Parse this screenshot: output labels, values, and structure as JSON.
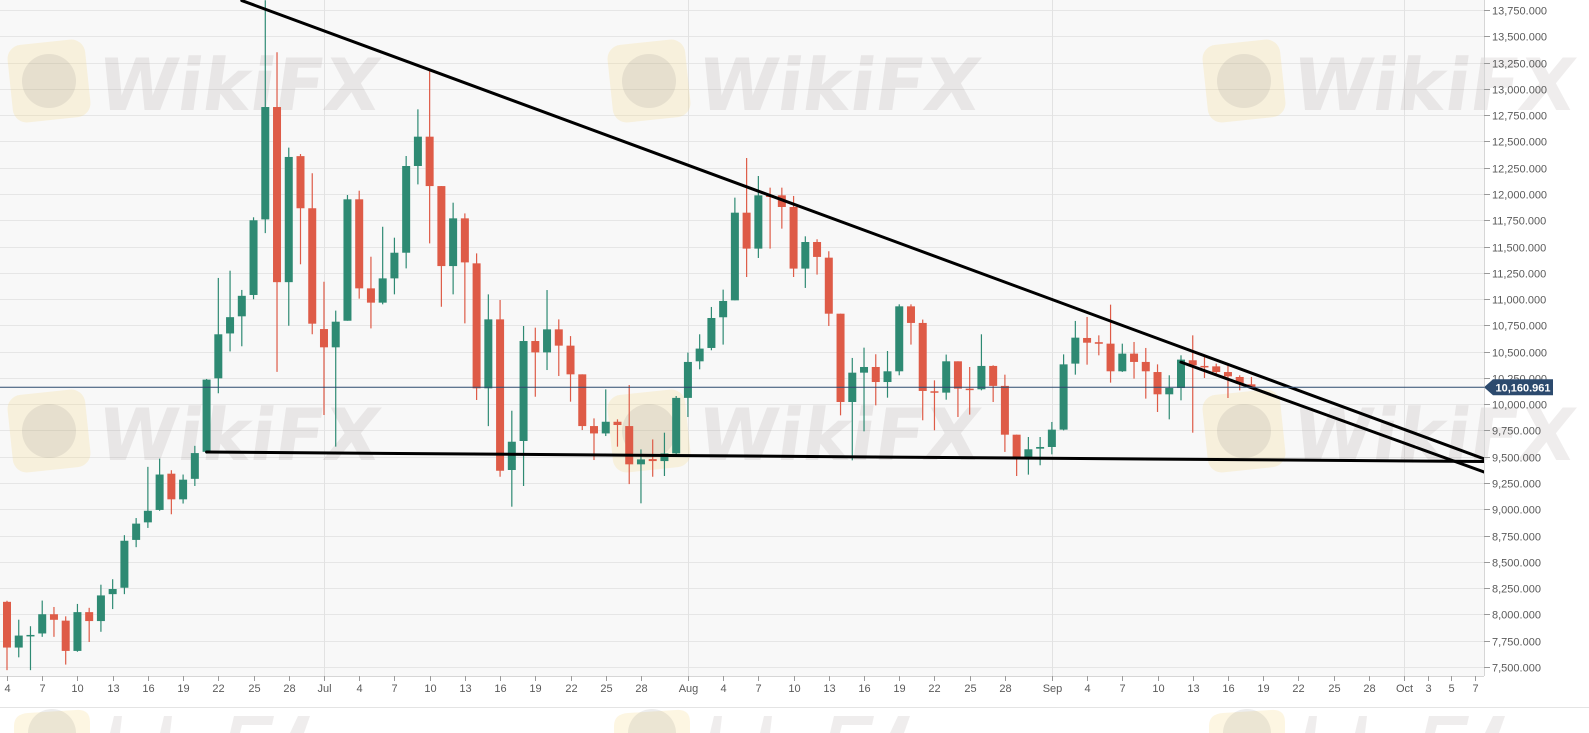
{
  "chart_data": {
    "type": "candlestick",
    "title": "",
    "xlabel": "",
    "ylabel": "",
    "ylim": [
      7500,
      13750
    ],
    "grid": true,
    "colors": {
      "up": "#2e8a73",
      "down": "#de5b47",
      "background": "#f8f8f8",
      "grid": "#e6e6e6",
      "price_line": "#2c4a6e",
      "trend_line": "#000000"
    },
    "current_price": {
      "value": 10160.961,
      "label": "10,160.961"
    },
    "y_ticks": [
      {
        "value": 13750,
        "label": "13,750.000"
      },
      {
        "value": 13500,
        "label": "13,500.000"
      },
      {
        "value": 13250,
        "label": "13,250.000"
      },
      {
        "value": 13000,
        "label": "13,000.000"
      },
      {
        "value": 12750,
        "label": "12,750.000"
      },
      {
        "value": 12500,
        "label": "12,500.000"
      },
      {
        "value": 12250,
        "label": "12,250.000"
      },
      {
        "value": 12000,
        "label": "12,000.000"
      },
      {
        "value": 11750,
        "label": "11,750.000"
      },
      {
        "value": 11500,
        "label": "11,500.000"
      },
      {
        "value": 11250,
        "label": "11,250.000"
      },
      {
        "value": 11000,
        "label": "11,000.000"
      },
      {
        "value": 10750,
        "label": "10,750.000"
      },
      {
        "value": 10500,
        "label": "10,500.000"
      },
      {
        "value": 10250,
        "label": "10,250.000"
      },
      {
        "value": 10000,
        "label": "10,000.000"
      },
      {
        "value": 9750,
        "label": "9,750.000"
      },
      {
        "value": 9500,
        "label": "9,500.000"
      },
      {
        "value": 9250,
        "label": "9,250.000"
      },
      {
        "value": 9000,
        "label": "9,000.000"
      },
      {
        "value": 8750,
        "label": "8,750.000"
      },
      {
        "value": 8500,
        "label": "8,500.000"
      },
      {
        "value": 8250,
        "label": "8,250.000"
      },
      {
        "value": 8000,
        "label": "8,000.000"
      },
      {
        "value": 7750,
        "label": "7,750.000"
      },
      {
        "value": 7500,
        "label": "7,500.000"
      }
    ],
    "x_ticks": [
      {
        "date": "06-04",
        "label": "4"
      },
      {
        "date": "06-07",
        "label": "7"
      },
      {
        "date": "06-10",
        "label": "10"
      },
      {
        "date": "06-13",
        "label": "13"
      },
      {
        "date": "06-16",
        "label": "16"
      },
      {
        "date": "06-19",
        "label": "19"
      },
      {
        "date": "06-22",
        "label": "22"
      },
      {
        "date": "06-25",
        "label": "25"
      },
      {
        "date": "06-28",
        "label": "28"
      },
      {
        "date": "07-01",
        "label": "Jul",
        "month": true
      },
      {
        "date": "07-04",
        "label": "4"
      },
      {
        "date": "07-07",
        "label": "7"
      },
      {
        "date": "07-10",
        "label": "10"
      },
      {
        "date": "07-13",
        "label": "13"
      },
      {
        "date": "07-16",
        "label": "16"
      },
      {
        "date": "07-19",
        "label": "19"
      },
      {
        "date": "07-22",
        "label": "22"
      },
      {
        "date": "07-25",
        "label": "25"
      },
      {
        "date": "07-28",
        "label": "28"
      },
      {
        "date": "08-01",
        "label": "Aug",
        "month": true
      },
      {
        "date": "08-04",
        "label": "4"
      },
      {
        "date": "08-07",
        "label": "7"
      },
      {
        "date": "08-10",
        "label": "10"
      },
      {
        "date": "08-13",
        "label": "13"
      },
      {
        "date": "08-16",
        "label": "16"
      },
      {
        "date": "08-19",
        "label": "19"
      },
      {
        "date": "08-22",
        "label": "22"
      },
      {
        "date": "08-25",
        "label": "25"
      },
      {
        "date": "08-28",
        "label": "28"
      },
      {
        "date": "09-01",
        "label": "Sep",
        "month": true
      },
      {
        "date": "09-04",
        "label": "4"
      },
      {
        "date": "09-07",
        "label": "7"
      },
      {
        "date": "09-10",
        "label": "10"
      },
      {
        "date": "09-13",
        "label": "13"
      },
      {
        "date": "09-16",
        "label": "16"
      },
      {
        "date": "09-19",
        "label": "19"
      },
      {
        "date": "09-22",
        "label": "22"
      },
      {
        "date": "09-25",
        "label": "25"
      },
      {
        "date": "09-28",
        "label": "28"
      },
      {
        "date": "10-01",
        "label": "Oct",
        "month": true
      },
      {
        "date": "10-03",
        "label": "3"
      },
      {
        "date": "10-05",
        "label": "5"
      },
      {
        "date": "10-07",
        "label": "7"
      }
    ],
    "candle_fields": [
      "date",
      "open",
      "high",
      "low",
      "close"
    ],
    "candles": [
      [
        "06-04",
        8120,
        8130,
        7470,
        7685
      ],
      [
        "06-05",
        7685,
        7950,
        7592,
        7799
      ],
      [
        "06-06",
        7795,
        7888,
        7470,
        7805
      ],
      [
        "06-07",
        7819,
        8132,
        7787,
        8002
      ],
      [
        "06-08",
        8002,
        8071,
        7787,
        7949
      ],
      [
        "06-09",
        7941,
        7982,
        7523,
        7653
      ],
      [
        "06-10",
        7653,
        8100,
        7645,
        8022
      ],
      [
        "06-11",
        8022,
        8063,
        7738,
        7937
      ],
      [
        "06-12",
        7937,
        8283,
        7835,
        8181
      ],
      [
        "06-13",
        8193,
        8335,
        8051,
        8242
      ],
      [
        "06-14",
        8254,
        8754,
        8193,
        8701
      ],
      [
        "06-15",
        8709,
        8917,
        8640,
        8864
      ],
      [
        "06-16",
        8876,
        9404,
        8823,
        8986
      ],
      [
        "06-17",
        8994,
        9482,
        8986,
        9331
      ],
      [
        "06-18",
        9339,
        9372,
        8953,
        9095
      ],
      [
        "06-19",
        9095,
        9331,
        9055,
        9282
      ],
      [
        "06-20",
        9290,
        9604,
        9222,
        9535
      ],
      [
        "06-21",
        9547,
        10240,
        9530,
        10234
      ],
      [
        "06-22",
        10246,
        11201,
        10104,
        10665
      ],
      [
        "06-23",
        10673,
        11270,
        10502,
        10828
      ],
      [
        "06-24",
        10836,
        11087,
        10551,
        11031
      ],
      [
        "06-25",
        11039,
        11778,
        10998,
        11750
      ],
      [
        "06-26",
        11758,
        13843,
        11628,
        12827
      ],
      [
        "06-27",
        12827,
        13348,
        10307,
        11161
      ],
      [
        "06-28",
        11161,
        12441,
        10746,
        12352
      ],
      [
        "06-29",
        12360,
        12380,
        11331,
        11864
      ],
      [
        "06-30",
        11864,
        12197,
        10665,
        10766
      ],
      [
        "07-01",
        10715,
        11165,
        9897,
        10541
      ],
      [
        "07-02",
        10541,
        10890,
        9596,
        10785
      ],
      [
        "07-03",
        10794,
        11990,
        10794,
        11949
      ],
      [
        "07-04",
        11949,
        12031,
        11004,
        11102
      ],
      [
        "07-05",
        11102,
        11403,
        10721,
        10966
      ],
      [
        "07-06",
        10966,
        11688,
        10950,
        11197
      ],
      [
        "07-07",
        11197,
        11584,
        11045,
        11441
      ],
      [
        "07-08",
        11441,
        12361,
        11292,
        12266
      ],
      [
        "07-09",
        12266,
        12805,
        12091,
        12545
      ],
      [
        "07-10",
        12545,
        13179,
        11530,
        12075
      ],
      [
        "07-11",
        12075,
        12075,
        10927,
        11314
      ],
      [
        "07-12",
        11314,
        11917,
        11045,
        11768
      ],
      [
        "07-13",
        11768,
        11815,
        10769,
        11349
      ],
      [
        "07-14",
        11340,
        11435,
        10040,
        10151
      ],
      [
        "07-15",
        10151,
        11045,
        9792,
        10807
      ],
      [
        "07-16",
        10807,
        10991,
        9310,
        9367
      ],
      [
        "07-17",
        9374,
        9938,
        9025,
        9643
      ],
      [
        "07-18",
        9650,
        10744,
        9222,
        10601
      ],
      [
        "07-19",
        10601,
        10728,
        10071,
        10493
      ],
      [
        "07-20",
        10493,
        11086,
        10325,
        10712
      ],
      [
        "07-21",
        10712,
        10807,
        10268,
        10557
      ],
      [
        "07-22",
        10557,
        10648,
        10024,
        10284
      ],
      [
        "07-23",
        10284,
        10284,
        9754,
        9792
      ],
      [
        "07-24",
        9792,
        9865,
        9469,
        9722
      ],
      [
        "07-25",
        9722,
        10141,
        9697,
        9833
      ],
      [
        "07-26",
        9833,
        9856,
        9596,
        9802
      ],
      [
        "07-27",
        9792,
        10182,
        9240,
        9428
      ],
      [
        "07-28",
        9428,
        9570,
        9057,
        9475
      ],
      [
        "07-29",
        9478,
        9665,
        9310,
        9459
      ],
      [
        "07-30",
        9459,
        9729,
        9317,
        9532
      ],
      [
        "07-31",
        9532,
        10078,
        9516,
        10060
      ],
      [
        "08-01",
        10060,
        10491,
        9878,
        10402
      ],
      [
        "08-02",
        10408,
        10665,
        10332,
        10529
      ],
      [
        "08-03",
        10535,
        10925,
        10513,
        10820
      ],
      [
        "08-04",
        10827,
        11090,
        10567,
        10982
      ],
      [
        "08-05",
        10988,
        11965,
        10988,
        11822
      ],
      [
        "08-06",
        11822,
        12342,
        11210,
        11480
      ],
      [
        "08-07",
        11480,
        12171,
        11391,
        11987
      ],
      [
        "08-08",
        11987,
        12060,
        11480,
        11971
      ],
      [
        "08-09",
        11987,
        12060,
        11670,
        11876
      ],
      [
        "08-10",
        11876,
        11981,
        11210,
        11290
      ],
      [
        "08-11",
        11290,
        11597,
        11106,
        11543
      ],
      [
        "08-12",
        11543,
        11569,
        11233,
        11401
      ],
      [
        "08-13",
        11394,
        11455,
        10744,
        10861
      ],
      [
        "08-14",
        10861,
        10861,
        9894,
        10021
      ],
      [
        "08-15",
        10021,
        10440,
        9466,
        10300
      ],
      [
        "08-16",
        10300,
        10538,
        9742,
        10354
      ],
      [
        "08-17",
        10354,
        10475,
        9989,
        10211
      ],
      [
        "08-18",
        10211,
        10506,
        10062,
        10313
      ],
      [
        "08-19",
        10313,
        10950,
        10275,
        10931
      ],
      [
        "08-20",
        10931,
        10950,
        10567,
        10773
      ],
      [
        "08-21",
        10773,
        10805,
        9847,
        10126
      ],
      [
        "08-22",
        10123,
        10227,
        9752,
        10110
      ],
      [
        "08-23",
        10110,
        10472,
        10043,
        10408
      ],
      [
        "08-24",
        10408,
        10408,
        9878,
        10148
      ],
      [
        "08-25",
        10148,
        10354,
        9901,
        10135
      ],
      [
        "08-26",
        10142,
        10665,
        10132,
        10364
      ],
      [
        "08-27",
        10364,
        10370,
        10021,
        10174
      ],
      [
        "08-28",
        10174,
        10281,
        9546,
        9710
      ],
      [
        "08-29",
        9710,
        9710,
        9317,
        9498
      ],
      [
        "08-30",
        9498,
        9688,
        9330,
        9571
      ],
      [
        "08-31",
        9577,
        9688,
        9419,
        9593
      ],
      [
        "09-01",
        9593,
        9831,
        9523,
        9758
      ],
      [
        "09-02",
        9758,
        10474,
        9751,
        10379
      ],
      [
        "09-03",
        10386,
        10792,
        10281,
        10633
      ],
      [
        "09-04",
        10630,
        10830,
        10376,
        10585
      ],
      [
        "09-05",
        10590,
        10655,
        10465,
        10575
      ],
      [
        "09-06",
        10576,
        10947,
        10205,
        10313
      ],
      [
        "09-07",
        10313,
        10576,
        10307,
        10481
      ],
      [
        "09-08",
        10481,
        10592,
        10243,
        10402
      ],
      [
        "09-09",
        10402,
        10535,
        10053,
        10313
      ],
      [
        "09-10",
        10306,
        10379,
        9926,
        10094
      ],
      [
        "09-11",
        10094,
        10275,
        9856,
        10154
      ],
      [
        "09-12",
        10154,
        10465,
        10037,
        10424
      ],
      [
        "09-13",
        10418,
        10655,
        9729,
        10370
      ],
      [
        "09-14",
        10364,
        10465,
        10249,
        10357
      ],
      [
        "09-15",
        10360,
        10386,
        10275,
        10306
      ],
      [
        "09-16",
        10306,
        10370,
        10059,
        10265
      ],
      [
        "09-17",
        10259,
        10275,
        10132,
        10195
      ],
      [
        "09-18",
        10189,
        10259,
        10148,
        10161
      ]
    ],
    "trend_lines": [
      {
        "from": {
          "date": "06-24",
          "price": 13840
        },
        "to": {
          "date": "10-08",
          "price": 9480
        }
      },
      {
        "from": {
          "date": "06-21",
          "price": 9545
        },
        "to": {
          "date": "10-08",
          "price": 9455
        }
      },
      {
        "from": {
          "date": "09-12",
          "price": 10400
        },
        "to": {
          "date": "10-08",
          "price": 9355
        }
      }
    ]
  },
  "watermark": "WikiFX"
}
